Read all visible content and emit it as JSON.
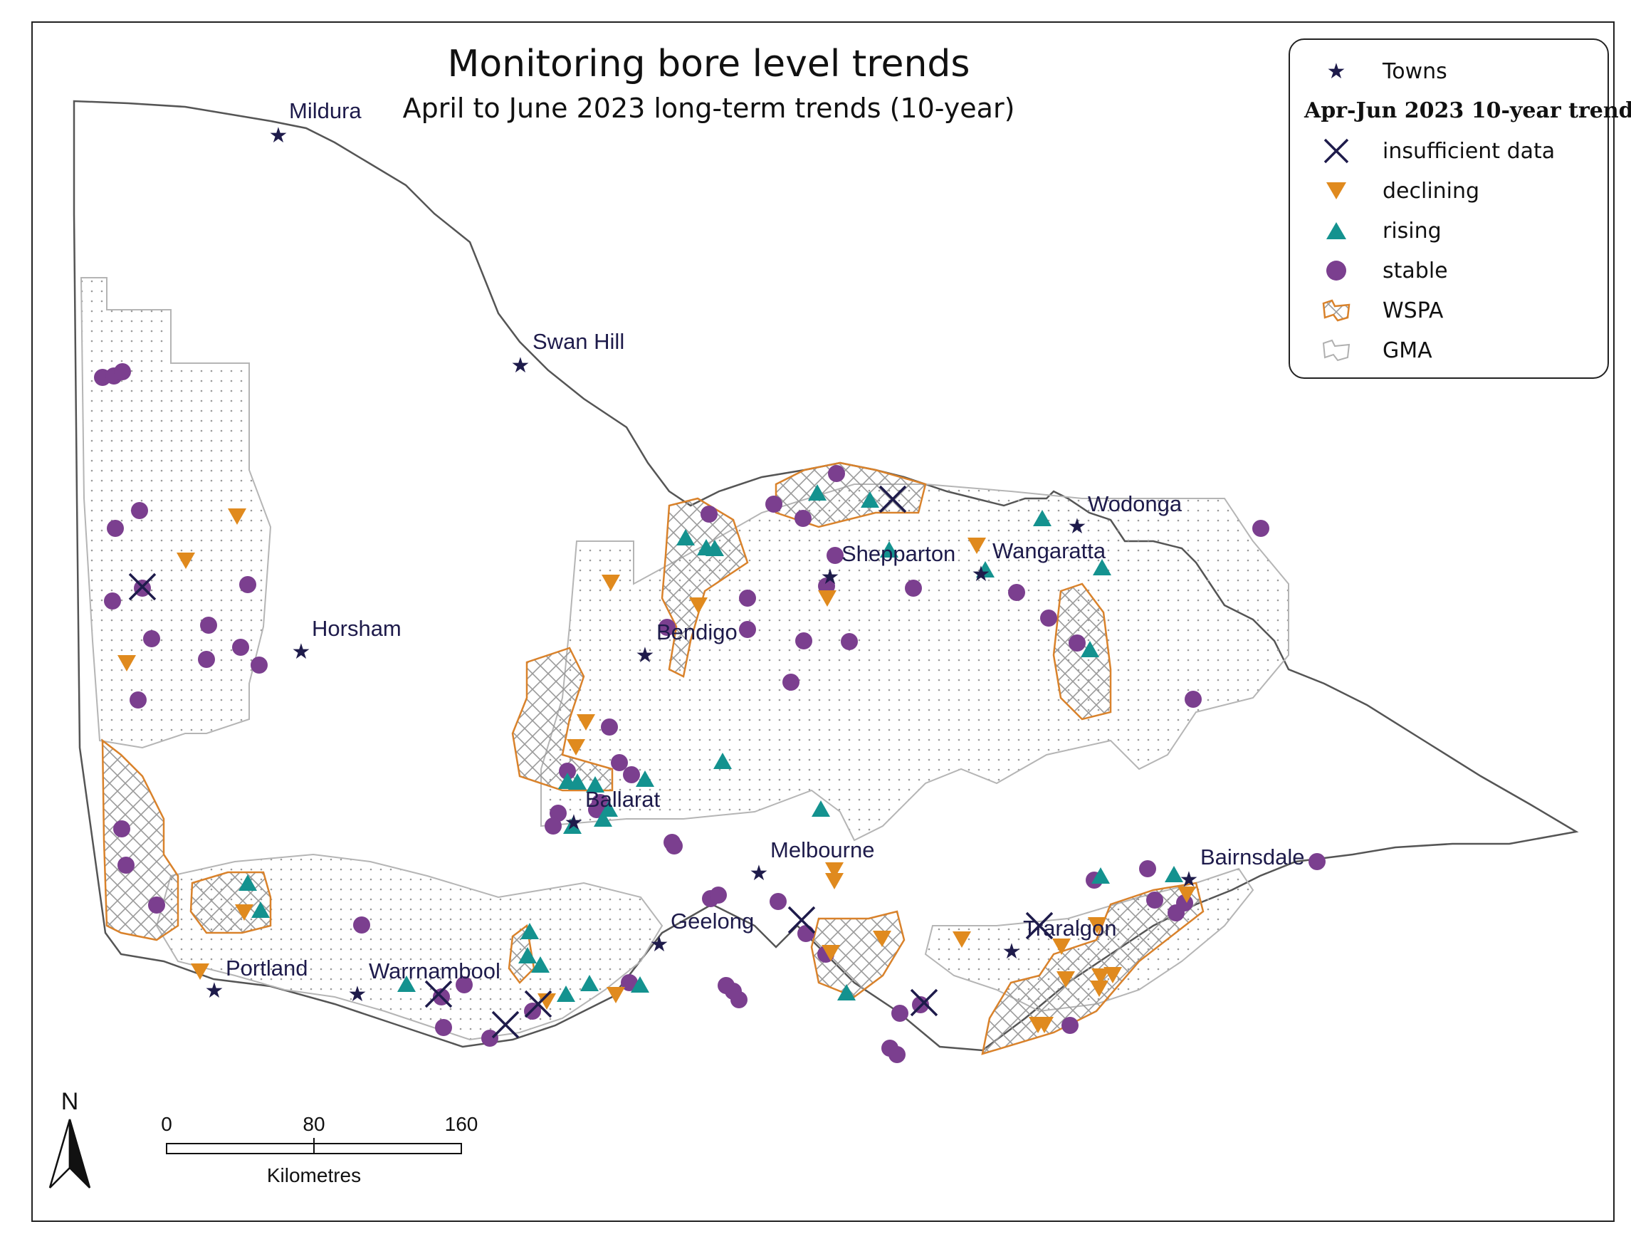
{
  "title": "Monitoring bore level trends",
  "subtitle": "April to June 2023 long-term trends (10-year)",
  "legend": {
    "towns_label": "Towns",
    "trend_heading": "Apr-Jun 2023 10-year trend",
    "insufficient_label": "insufficient data",
    "declining_label": "declining",
    "rising_label": "rising",
    "stable_label": "stable",
    "wspa_label": "WSPA",
    "gma_label": "GMA"
  },
  "colors": {
    "town": "#1e1b4b",
    "insufficient": "#1e1b4b",
    "declining": "#e08a1e",
    "rising": "#14928f",
    "stable": "#7b3f8f",
    "wspa": "#d9822b",
    "gma_outline": "#b0b0b0",
    "border": "#555555"
  },
  "towns": [
    "Mildura",
    "Swan Hill",
    "Horsham",
    "Bendigo",
    "Shepparton",
    "Wangaratta",
    "Wodonga",
    "Ballarat",
    "Melbourne",
    "Geelong",
    "Bairnsdale",
    "Traralgon",
    "Portland",
    "Warrnambool"
  ],
  "scale": {
    "tick_0": "0",
    "tick_80": "80",
    "tick_160": "160",
    "unit": "Kilometres"
  },
  "north_label": "N"
}
